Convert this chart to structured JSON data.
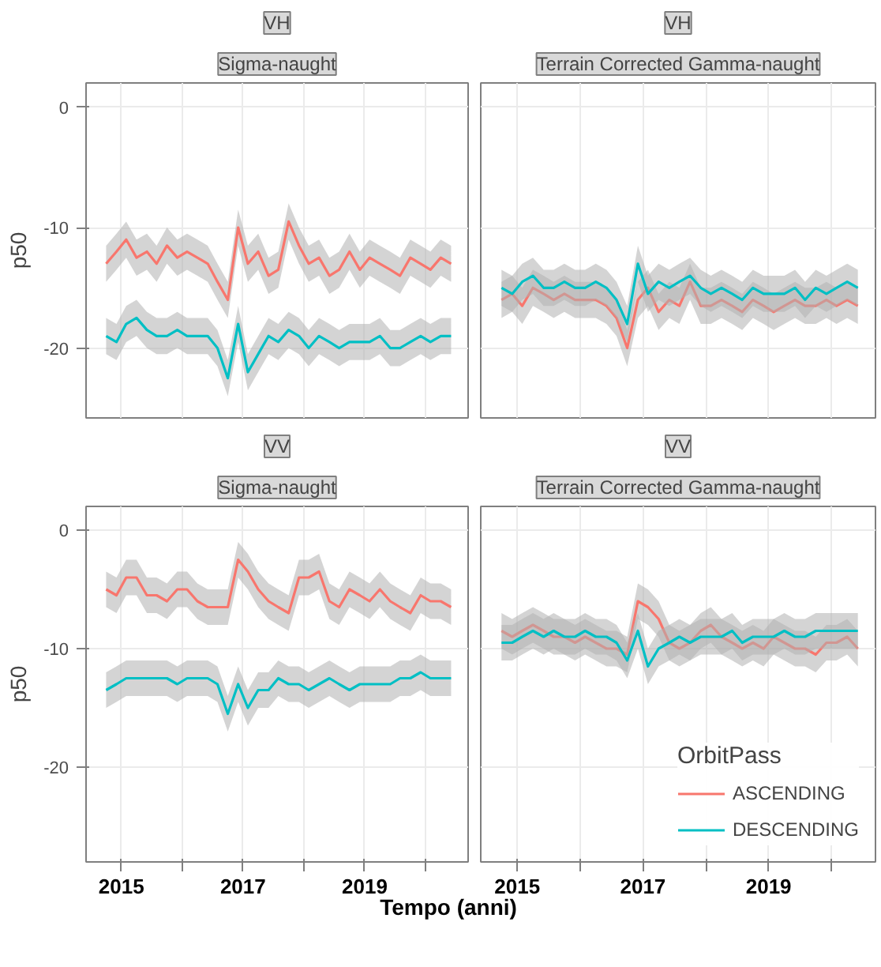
{
  "chart_data": [
    {
      "type": "line",
      "title": "VH",
      "subtitle": "Sigma-naught",
      "ylabel": "p50",
      "xlim": [
        2014.42,
        2020.7
      ],
      "ylim": [
        -25.8,
        2
      ],
      "xticks": [
        2015,
        {
          "value": 2016,
          "label": null
        },
        2017,
        {
          "value": 2018,
          "label": null
        },
        2019,
        {
          "value": 2020,
          "label": null
        }
      ],
      "yticks": [
        0,
        -10,
        -20
      ],
      "grid": true,
      "tick_labels": "y",
      "legend": false,
      "x": [
        2014.75,
        2014.92,
        2015.08,
        2015.25,
        2015.42,
        2015.58,
        2015.75,
        2015.92,
        2016.08,
        2016.25,
        2016.42,
        2016.58,
        2016.75,
        2016.92,
        2017.08,
        2017.25,
        2017.42,
        2017.58,
        2017.75,
        2017.92,
        2018.08,
        2018.25,
        2018.42,
        2018.58,
        2018.75,
        2018.92,
        2019.08,
        2019.25,
        2019.42,
        2019.58,
        2019.75,
        2019.92,
        2020.08,
        2020.25,
        2020.42
      ],
      "series": [
        {
          "color": "#f8766d",
          "values": [
            -13,
            -12,
            -11,
            -12.5,
            -12,
            -13,
            -11.5,
            -12.5,
            -12,
            -12.5,
            -13,
            -14.5,
            -16,
            -10,
            -13,
            -12,
            -14,
            -13.5,
            -9.5,
            -11.5,
            -13,
            -12.5,
            -14,
            -13.5,
            -12,
            -13.5,
            -12.5,
            -13,
            -13.5,
            -14,
            -12.5,
            -13,
            -13.5,
            -12.5,
            -13
          ],
          "lower": [
            -14.5,
            -13.5,
            -12.5,
            -14,
            -13.5,
            -14.5,
            -13,
            -14,
            -13.5,
            -14,
            -14.5,
            -16,
            -17.5,
            -11.5,
            -14.5,
            -13.5,
            -15.5,
            -15,
            -11,
            -13,
            -14.5,
            -14,
            -15.5,
            -15,
            -13.5,
            -15,
            -14,
            -14.5,
            -15,
            -15.5,
            -14,
            -14.5,
            -15,
            -14,
            -14.5
          ],
          "upper": [
            -11.5,
            -10.5,
            -9.5,
            -11,
            -10.5,
            -11.5,
            -10,
            -11,
            -10.5,
            -11,
            -11.5,
            -13,
            -14.5,
            -8.5,
            -11.5,
            -10.5,
            -12.5,
            -12,
            -8,
            -10,
            -11.5,
            -11,
            -12.5,
            -12,
            -10.5,
            -12,
            -11,
            -11.5,
            -12,
            -12.5,
            -11,
            -11.5,
            -12,
            -11,
            -11.5
          ]
        },
        {
          "color": "#00bfc4",
          "values": [
            -19,
            -19.5,
            -18,
            -17.5,
            -18.5,
            -19,
            -19,
            -18.5,
            -19,
            -19,
            -19,
            -20,
            -22.5,
            -18,
            -22,
            -20.5,
            -19,
            -19.5,
            -18.5,
            -19,
            -20,
            -19,
            -19.5,
            -20,
            -19.5,
            -19.5,
            -19.5,
            -19,
            -20,
            -20,
            -19.5,
            -19,
            -19.5,
            -19,
            -19
          ],
          "lower": [
            -20.5,
            -21,
            -19.5,
            -19,
            -20,
            -20.5,
            -20.5,
            -20,
            -20.5,
            -20.5,
            -20.5,
            -21.5,
            -24,
            -19.5,
            -23.5,
            -22,
            -20.5,
            -21,
            -20,
            -20.5,
            -21.5,
            -20.5,
            -21,
            -21.5,
            -21,
            -21,
            -21,
            -20.5,
            -21.5,
            -21.5,
            -21,
            -20.5,
            -21,
            -20.5,
            -20.5
          ],
          "upper": [
            -17.5,
            -18,
            -16.5,
            -16,
            -17,
            -17.5,
            -17.5,
            -17,
            -17.5,
            -17.5,
            -17.5,
            -18.5,
            -21,
            -16.5,
            -20.5,
            -19,
            -17.5,
            -18,
            -17,
            -17.5,
            -18.5,
            -17.5,
            -18,
            -18.5,
            -18,
            -18,
            -18,
            -17.5,
            -18.5,
            -18.5,
            -18,
            -17.5,
            -18,
            -17.5,
            -17.5
          ]
        }
      ]
    },
    {
      "type": "line",
      "title": "VH",
      "subtitle": "Terrain Corrected Gamma-naught",
      "xlim": [
        2014.42,
        2020.7
      ],
      "ylim": [
        -25.8,
        2
      ],
      "xticks": [
        2015,
        {
          "value": 2016,
          "label": null
        },
        2017,
        {
          "value": 2018,
          "label": null
        },
        2019,
        {
          "value": 2020,
          "label": null
        }
      ],
      "yticks": [
        0,
        -10,
        -20
      ],
      "grid": true,
      "tick_labels": false,
      "legend": false,
      "x": [
        2014.75,
        2014.92,
        2015.08,
        2015.25,
        2015.42,
        2015.58,
        2015.75,
        2015.92,
        2016.08,
        2016.25,
        2016.42,
        2016.58,
        2016.75,
        2016.92,
        2017.08,
        2017.25,
        2017.42,
        2017.58,
        2017.75,
        2017.92,
        2018.08,
        2018.25,
        2018.42,
        2018.58,
        2018.75,
        2018.92,
        2019.08,
        2019.25,
        2019.42,
        2019.58,
        2019.75,
        2019.92,
        2020.08,
        2020.25,
        2020.42
      ],
      "series": [
        {
          "color": "#f8766d",
          "values": [
            -16,
            -15.5,
            -16.5,
            -15,
            -15.5,
            -16,
            -15.5,
            -16,
            -16,
            -16,
            -16.5,
            -17.5,
            -20,
            -16,
            -15,
            -17,
            -16,
            -16.5,
            -14.5,
            -16.5,
            -16.5,
            -16,
            -16.5,
            -17,
            -16,
            -16.5,
            -17,
            -16.5,
            -16,
            -16.5,
            -16.5,
            -16,
            -16.5,
            -16,
            -16.5
          ],
          "lower": [
            -17.5,
            -17,
            -18,
            -16.5,
            -17,
            -17.5,
            -17,
            -17.5,
            -17.5,
            -17.5,
            -18,
            -19,
            -21.5,
            -17.5,
            -16.5,
            -18.5,
            -17.5,
            -18,
            -16,
            -18,
            -18,
            -17.5,
            -18,
            -18.5,
            -17.5,
            -18,
            -18.5,
            -18,
            -17.5,
            -18,
            -18,
            -17.5,
            -18,
            -17.5,
            -18
          ],
          "upper": [
            -14.5,
            -14,
            -15,
            -13.5,
            -14,
            -14.5,
            -14,
            -14.5,
            -14.5,
            -14.5,
            -15,
            -16,
            -18.5,
            -14.5,
            -13.5,
            -15.5,
            -14.5,
            -15,
            -13,
            -15,
            -15,
            -14.5,
            -15,
            -15.5,
            -14.5,
            -15,
            -15.5,
            -15,
            -14.5,
            -15,
            -15,
            -14.5,
            -15,
            -14.5,
            -15
          ]
        },
        {
          "color": "#00bfc4",
          "values": [
            -15,
            -15.5,
            -14.5,
            -14,
            -15,
            -15,
            -14.5,
            -15,
            -15,
            -14.5,
            -15,
            -16,
            -18,
            -13,
            -15.5,
            -14.5,
            -15,
            -14.5,
            -14,
            -15,
            -15.5,
            -15,
            -15.5,
            -16,
            -15,
            -15.5,
            -15.5,
            -15.5,
            -15,
            -16,
            -15,
            -15.5,
            -15,
            -14.5,
            -15
          ],
          "lower": [
            -16.5,
            -17,
            -16,
            -15.5,
            -16.5,
            -16.5,
            -16,
            -16.5,
            -16.5,
            -16,
            -16.5,
            -17.5,
            -19.5,
            -14.5,
            -17,
            -16,
            -16.5,
            -16,
            -15.5,
            -16.5,
            -17,
            -16.5,
            -17,
            -17.5,
            -16.5,
            -17,
            -17,
            -17,
            -16.5,
            -17.5,
            -16.5,
            -17,
            -16.5,
            -16,
            -16.5
          ],
          "upper": [
            -13.5,
            -14,
            -13,
            -12.5,
            -13.5,
            -13.5,
            -13,
            -13.5,
            -13.5,
            -13,
            -13.5,
            -14.5,
            -16.5,
            -11.5,
            -14,
            -13,
            -13.5,
            -13,
            -12.5,
            -13.5,
            -14,
            -13.5,
            -14,
            -14.5,
            -13.5,
            -14,
            -14,
            -14,
            -13.5,
            -14.5,
            -13.5,
            -14,
            -13.5,
            -13,
            -13.5
          ]
        }
      ]
    },
    {
      "type": "line",
      "title": "VV",
      "subtitle": "Sigma-naught",
      "ylabel": "p50",
      "xlabel": "Tempo (anni)",
      "xlim": [
        2014.42,
        2020.7
      ],
      "ylim": [
        -28,
        2
      ],
      "xticks": [
        2015,
        {
          "value": 2016,
          "label": null
        },
        2017,
        {
          "value": 2018,
          "label": null
        },
        2019,
        {
          "value": 2020,
          "label": null
        }
      ],
      "yticks": [
        0,
        -10,
        -20
      ],
      "grid": true,
      "legend": false,
      "x": [
        2014.75,
        2014.92,
        2015.08,
        2015.25,
        2015.42,
        2015.58,
        2015.75,
        2015.92,
        2016.08,
        2016.25,
        2016.42,
        2016.58,
        2016.75,
        2016.92,
        2017.08,
        2017.25,
        2017.42,
        2017.58,
        2017.75,
        2017.92,
        2018.08,
        2018.25,
        2018.42,
        2018.58,
        2018.75,
        2018.92,
        2019.08,
        2019.25,
        2019.42,
        2019.58,
        2019.75,
        2019.92,
        2020.08,
        2020.25,
        2020.42
      ],
      "series": [
        {
          "color": "#f8766d",
          "values": [
            -5,
            -5.5,
            -4,
            -4,
            -5.5,
            -5.5,
            -6,
            -5,
            -5,
            -6,
            -6.5,
            -6.5,
            -6.5,
            -2.5,
            -3.5,
            -5,
            -6,
            -6.5,
            -7,
            -4,
            -4,
            -3.5,
            -6,
            -6.5,
            -5,
            -5.5,
            -6,
            -5,
            -6,
            -6.5,
            -7,
            -5.5,
            -6,
            -6,
            -6.5
          ],
          "lower": [
            -6.5,
            -7,
            -5.5,
            -5.5,
            -7,
            -7,
            -7.5,
            -6.5,
            -6.5,
            -7.5,
            -8,
            -8,
            -8,
            -4,
            -5,
            -6.5,
            -7.5,
            -8,
            -8.5,
            -5.5,
            -5.5,
            -5,
            -7.5,
            -8,
            -6.5,
            -7,
            -7.5,
            -6.5,
            -7.5,
            -8,
            -8.5,
            -7,
            -7.5,
            -7.5,
            -8
          ],
          "upper": [
            -3.5,
            -4,
            -2.5,
            -2.5,
            -4,
            -4,
            -4.5,
            -3.5,
            -3.5,
            -4.5,
            -5,
            -5,
            -5,
            -1,
            -2,
            -3.5,
            -4.5,
            -5,
            -5.5,
            -2.5,
            -2.5,
            -2,
            -4.5,
            -5,
            -3.5,
            -4,
            -4.5,
            -3.5,
            -4.5,
            -5,
            -5.5,
            -4,
            -4.5,
            -4.5,
            -5
          ]
        },
        {
          "color": "#00bfc4",
          "values": [
            -13.5,
            -13,
            -12.5,
            -12.5,
            -12.5,
            -12.5,
            -12.5,
            -13,
            -12.5,
            -12.5,
            -12.5,
            -13,
            -15.5,
            -13,
            -15,
            -13.5,
            -13.5,
            -12.5,
            -13,
            -13,
            -13.5,
            -13,
            -12.5,
            -13,
            -13.5,
            -13,
            -13,
            -13,
            -13,
            -12.5,
            -12.5,
            -12,
            -12.5,
            -12.5,
            -12.5
          ],
          "lower": [
            -15,
            -14.5,
            -14,
            -14,
            -14,
            -14,
            -14,
            -14.5,
            -14,
            -14,
            -14,
            -14.5,
            -17,
            -14.5,
            -16.5,
            -15,
            -15,
            -14,
            -14.5,
            -14.5,
            -15,
            -14.5,
            -14,
            -14.5,
            -15,
            -14.5,
            -14.5,
            -14.5,
            -14.5,
            -14,
            -14,
            -13.5,
            -14,
            -14,
            -14
          ],
          "upper": [
            -12,
            -11.5,
            -11,
            -11,
            -11,
            -11,
            -11,
            -11.5,
            -11,
            -11,
            -11,
            -11.5,
            -14,
            -11.5,
            -13.5,
            -12,
            -12,
            -11,
            -11.5,
            -11.5,
            -12,
            -11.5,
            -11,
            -11.5,
            -12,
            -11.5,
            -11.5,
            -11.5,
            -11.5,
            -11,
            -11,
            -10.5,
            -11,
            -11,
            -11
          ]
        }
      ]
    },
    {
      "type": "line",
      "title": "VV",
      "subtitle": "Terrain Corrected Gamma-naught",
      "legend_title": "OrbitPass",
      "legend": "bottom right",
      "xlim": [
        2014.42,
        2020.7
      ],
      "ylim": [
        -28,
        2
      ],
      "xticks": [
        2015,
        {
          "value": 2016,
          "label": null
        },
        2017,
        {
          "value": 2018,
          "label": null
        },
        2019,
        {
          "value": 2020,
          "label": null
        }
      ],
      "yticks": [
        0,
        -10,
        -20
      ],
      "grid": true,
      "tick_labels": "x",
      "x": [
        2014.75,
        2014.92,
        2015.08,
        2015.25,
        2015.42,
        2015.58,
        2015.75,
        2015.92,
        2016.08,
        2016.25,
        2016.42,
        2016.58,
        2016.75,
        2016.92,
        2017.08,
        2017.25,
        2017.42,
        2017.58,
        2017.75,
        2017.92,
        2018.08,
        2018.25,
        2018.42,
        2018.58,
        2018.75,
        2018.92,
        2019.08,
        2019.25,
        2019.42,
        2019.58,
        2019.75,
        2019.92,
        2020.08,
        2020.25,
        2020.42
      ],
      "series": [
        {
          "name": "ASCENDING",
          "color": "#f8766d",
          "values": [
            -8.5,
            -9,
            -8.5,
            -8,
            -8.5,
            -9,
            -9,
            -9.5,
            -9,
            -9.5,
            -10,
            -10,
            -10.5,
            -6,
            -6.5,
            -7.5,
            -9.5,
            -10,
            -9.5,
            -8.5,
            -8,
            -9,
            -9.5,
            -10,
            -9.5,
            -10,
            -9,
            -9.5,
            -10,
            -10,
            -10.5,
            -9.5,
            -9.5,
            -9,
            -10
          ],
          "lower": [
            -10,
            -10.5,
            -10,
            -9.5,
            -10,
            -10.5,
            -10.5,
            -11,
            -10.5,
            -11,
            -11.5,
            -11.5,
            -12,
            -7.5,
            -8,
            -9,
            -11,
            -11.5,
            -11,
            -10,
            -9.5,
            -10.5,
            -11,
            -11.5,
            -11,
            -11.5,
            -10.5,
            -11,
            -11.5,
            -11.5,
            -12,
            -11,
            -11,
            -10.5,
            -11.5
          ],
          "upper": [
            -7,
            -7.5,
            -7,
            -6.5,
            -7,
            -7.5,
            -7.5,
            -8,
            -7.5,
            -8,
            -8.5,
            -8.5,
            -9,
            -4.5,
            -5,
            -6,
            -8,
            -8.5,
            -8,
            -7,
            -6.5,
            -7.5,
            -8,
            -8.5,
            -8,
            -8.5,
            -7.5,
            -8,
            -8.5,
            -8.5,
            -9,
            -8,
            -8,
            -7.5,
            -8.5
          ]
        },
        {
          "name": "DESCENDING",
          "color": "#00bfc4",
          "values": [
            -9.5,
            -9.5,
            -9,
            -8.5,
            -9,
            -8.5,
            -9,
            -9,
            -8.5,
            -9,
            -9,
            -9.5,
            -11,
            -8.5,
            -11.5,
            -10,
            -9.5,
            -9,
            -9.5,
            -9,
            -9,
            -9,
            -8.5,
            -9.5,
            -9,
            -9,
            -9,
            -8.5,
            -9,
            -9,
            -8.5,
            -8.5,
            -8.5,
            -8.5,
            -8.5
          ],
          "lower": [
            -11,
            -11,
            -10.5,
            -10,
            -10.5,
            -10,
            -10.5,
            -10.5,
            -10,
            -10.5,
            -10.5,
            -11,
            -12.5,
            -10,
            -13,
            -11.5,
            -11,
            -10.5,
            -11,
            -10.5,
            -10.5,
            -10.5,
            -10,
            -11,
            -10.5,
            -10.5,
            -10.5,
            -10,
            -10.5,
            -10.5,
            -10,
            -10,
            -10,
            -10,
            -10
          ],
          "upper": [
            -8,
            -8,
            -7.5,
            -7,
            -7.5,
            -7,
            -7.5,
            -7.5,
            -7,
            -7.5,
            -7.5,
            -8,
            -9.5,
            -7,
            -10,
            -8.5,
            -8,
            -7.5,
            -8,
            -7.5,
            -7.5,
            -7.5,
            -7,
            -8,
            -7.5,
            -7.5,
            -7.5,
            -7,
            -7.5,
            -7.5,
            -7,
            -7,
            -7,
            -7,
            -7
          ]
        }
      ]
    }
  ]
}
